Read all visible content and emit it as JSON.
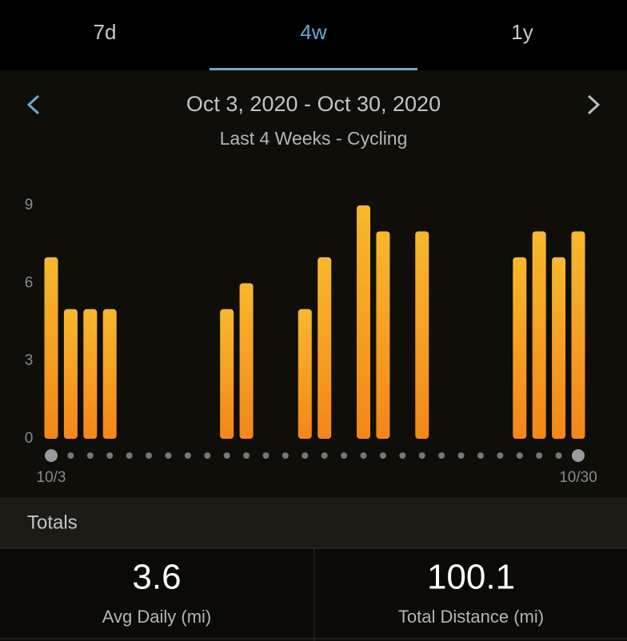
{
  "tabs": [
    "7d",
    "4w",
    "1y"
  ],
  "date_range": "Oct 3, 2020 - Oct 30, 2020",
  "subtitle": "Last 4 Weeks - Cycling",
  "chart_data": {
    "type": "bar",
    "categories": [
      "10/3",
      null,
      null,
      null,
      null,
      null,
      null,
      null,
      null,
      null,
      null,
      null,
      null,
      null,
      null,
      null,
      null,
      null,
      null,
      null,
      null,
      null,
      null,
      null,
      null,
      null,
      null,
      "10/30"
    ],
    "values": [
      7,
      5,
      5,
      5,
      0,
      0,
      0,
      0,
      0,
      5,
      6,
      0,
      0,
      5,
      7,
      0,
      9,
      8,
      0,
      8,
      0,
      0,
      0,
      0,
      7,
      8,
      7,
      8
    ],
    "color": "#f59a1e",
    "ylim": [
      0,
      9
    ],
    "yticks": [
      0,
      3,
      6,
      9
    ]
  },
  "totals": {
    "title": "Totals",
    "stats": [
      {
        "value": 3.6,
        "label": "Avg Daily (mi)"
      },
      {
        "value": 100.1,
        "label": "Total Distance (mi)"
      }
    ]
  }
}
